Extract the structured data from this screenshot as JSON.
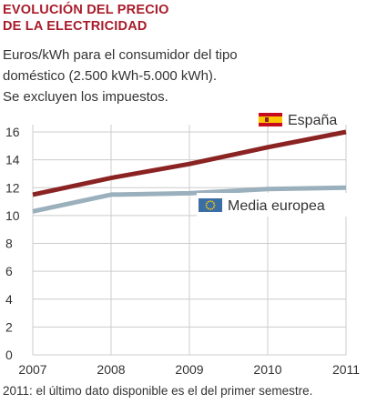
{
  "title_lines": [
    "EVOLUCIÓN DEL PRECIO",
    "DE LA ELECTRICIDAD"
  ],
  "subtitle_lines": [
    "Euros/kWh para el consumidor del tipo",
    "doméstico (2.500 kWh-5.000 kWh).",
    "Se excluyen los impuestos."
  ],
  "note": "2011: el último dato disponible es el del primer semestre.",
  "colors": {
    "title": "#a81c2a",
    "spain": "#8b2323",
    "europe": "#9ab0bc",
    "grid": "#cccccc"
  },
  "chart_data": {
    "type": "line",
    "x": [
      2007,
      2008,
      2009,
      2010,
      2011
    ],
    "series": [
      {
        "name": "España",
        "values": [
          11.5,
          12.7,
          13.7,
          14.9,
          16.0
        ],
        "color": "#8b2323",
        "icon": "spain-flag-icon"
      },
      {
        "name": "Media europea",
        "values": [
          10.3,
          11.5,
          11.6,
          11.9,
          12.0
        ],
        "color": "#9ab0bc",
        "icon": "eu-flag-icon"
      }
    ],
    "ylim": [
      0,
      16
    ],
    "yticks": [
      0,
      2,
      4,
      6,
      8,
      10,
      12,
      14,
      16
    ],
    "xticks": [
      2007,
      2008,
      2009,
      2010,
      2011
    ],
    "grid": true,
    "legend": "inline",
    "xlabel": "",
    "ylabel": ""
  }
}
